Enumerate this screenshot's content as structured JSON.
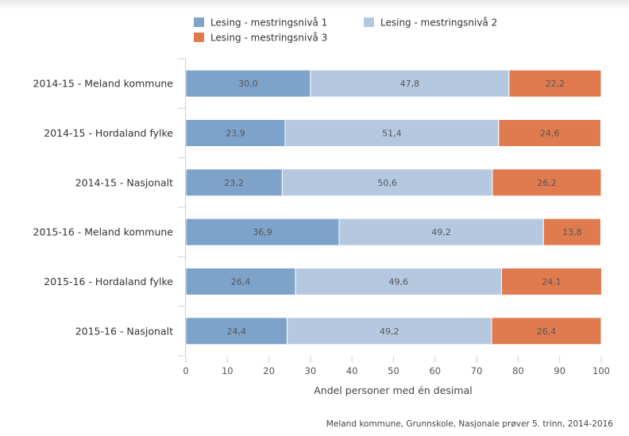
{
  "chart_data": {
    "type": "bar",
    "orientation": "horizontal",
    "stacked": "percent",
    "categories": [
      "2014-15 - Meland kommune",
      "2014-15 - Hordaland fylke",
      "2014-15 - Nasjonalt",
      "2015-16 - Meland kommune",
      "2015-16 - Hordaland fylke",
      "2015-16 - Nasjonalt"
    ],
    "series": [
      {
        "name": "Lesing - mestringsnivå 1",
        "color": "#7ea3cb",
        "values": [
          30.0,
          23.9,
          23.2,
          36.9,
          26.4,
          24.4
        ],
        "labels": [
          "30,0",
          "23,9",
          "23,2",
          "36,9",
          "26,4",
          "24,4"
        ]
      },
      {
        "name": "Lesing - mestringsnivå 2",
        "color": "#b4c9df",
        "values": [
          47.8,
          51.4,
          50.6,
          49.2,
          49.6,
          49.2
        ],
        "labels": [
          "47,8",
          "51,4",
          "50,6",
          "49,2",
          "49,6",
          "49,2"
        ]
      },
      {
        "name": "Lesing - mestringsnivå 3",
        "color": "#e07b4f",
        "values": [
          22.2,
          24.6,
          26.2,
          13.8,
          24.1,
          26.4
        ],
        "labels": [
          "22,2",
          "24,6",
          "26,2",
          "13,8",
          "24,1",
          "26,4"
        ]
      }
    ],
    "xlabel": "Andel personer med én desimal",
    "xlim": [
      0,
      100
    ],
    "xticks": [
      "0",
      "10",
      "20",
      "30",
      "40",
      "50",
      "60",
      "70",
      "80",
      "90",
      "100"
    ],
    "legend": "top",
    "grid": false,
    "credit": "Meland kommune, Grunnskole, Nasjonale prøver 5. trinn, 2014-2016"
  }
}
